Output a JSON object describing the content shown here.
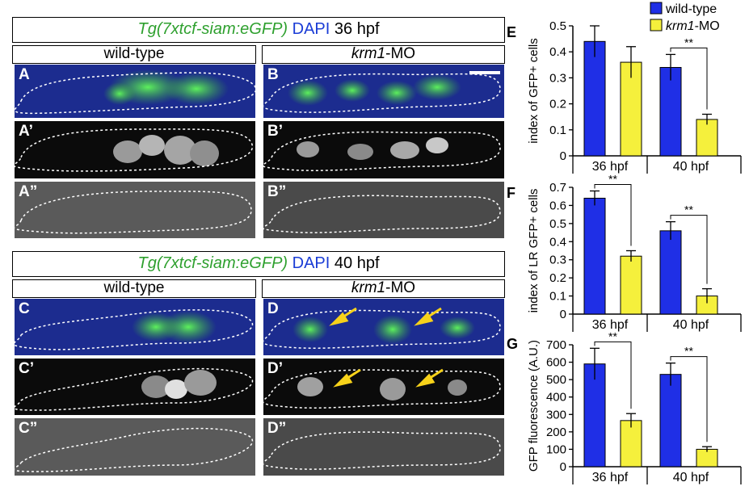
{
  "figure": {
    "top_header": {
      "transgene": "Tg(7xtcf-siam:eGFP)",
      "dapi": "DAPI",
      "stage": "36 hpf"
    },
    "bottom_header": {
      "transgene": "Tg(7xtcf-siam:eGFP)",
      "dapi": "DAPI",
      "stage": "40 hpf"
    },
    "conditions": {
      "wt": "wild-type",
      "mo_italic": "krm1",
      "mo_suffix": "-MO"
    },
    "panel_labels": {
      "A": "A",
      "A1": "A’",
      "A2": "A”",
      "B": "B",
      "B1": "B’",
      "B2": "B”",
      "C": "C",
      "C1": "C’",
      "C2": "C”",
      "D": "D",
      "D1": "D’",
      "D2": "D”"
    },
    "colors": {
      "wildtype": "#1f2fe6",
      "krm1_mo": "#f5f03c",
      "gfp": "#3ad63a",
      "dapi": "#1a2fd8",
      "arrow": "#f7d21a"
    }
  },
  "chart_data": [
    {
      "type": "bar",
      "panel_label": "E",
      "categories": [
        "36 hpf",
        "40 hpf"
      ],
      "series": [
        {
          "name": "wild-type",
          "values": [
            0.44,
            0.34
          ],
          "errors": [
            0.06,
            0.05
          ]
        },
        {
          "name": "krm1-MO",
          "values": [
            0.36,
            0.14
          ],
          "errors": [
            0.06,
            0.02
          ]
        }
      ],
      "ylabel": "index of GFP+ cells",
      "ylim": [
        0,
        0.5
      ],
      "yticks": [
        "0",
        "0.1",
        "0.2",
        "0.3",
        "0.4",
        "0.5"
      ],
      "significance": [
        "",
        "**"
      ],
      "legend": {
        "wildtype": "wild-type",
        "mo_italic": "krm1",
        "mo_suffix": "-MO"
      }
    },
    {
      "type": "bar",
      "panel_label": "F",
      "categories": [
        "36 hpf",
        "40 hpf"
      ],
      "series": [
        {
          "name": "wild-type",
          "values": [
            0.64,
            0.46
          ],
          "errors": [
            0.04,
            0.05
          ]
        },
        {
          "name": "krm1-MO",
          "values": [
            0.32,
            0.1
          ],
          "errors": [
            0.03,
            0.04
          ]
        }
      ],
      "ylabel": "index of LR GFP+ cells",
      "ylim": [
        0,
        0.7
      ],
      "yticks": [
        "0",
        "0.1",
        "0.2",
        "0.3",
        "0.4",
        "0.5",
        "0.6",
        "0.7"
      ],
      "significance": [
        "**",
        "**"
      ]
    },
    {
      "type": "bar",
      "panel_label": "G",
      "categories": [
        "36 hpf",
        "40 hpf"
      ],
      "series": [
        {
          "name": "wild-type",
          "values": [
            590,
            530
          ],
          "errors": [
            90,
            65
          ]
        },
        {
          "name": "krm1-MO",
          "values": [
            265,
            100
          ],
          "errors": [
            40,
            15
          ]
        }
      ],
      "ylabel": "GFP fluorescence (A.U.)",
      "ylim": [
        0,
        700
      ],
      "yticks": [
        "0",
        "100",
        "200",
        "300",
        "400",
        "500",
        "600",
        "700"
      ],
      "significance": [
        "**",
        "**"
      ]
    }
  ]
}
